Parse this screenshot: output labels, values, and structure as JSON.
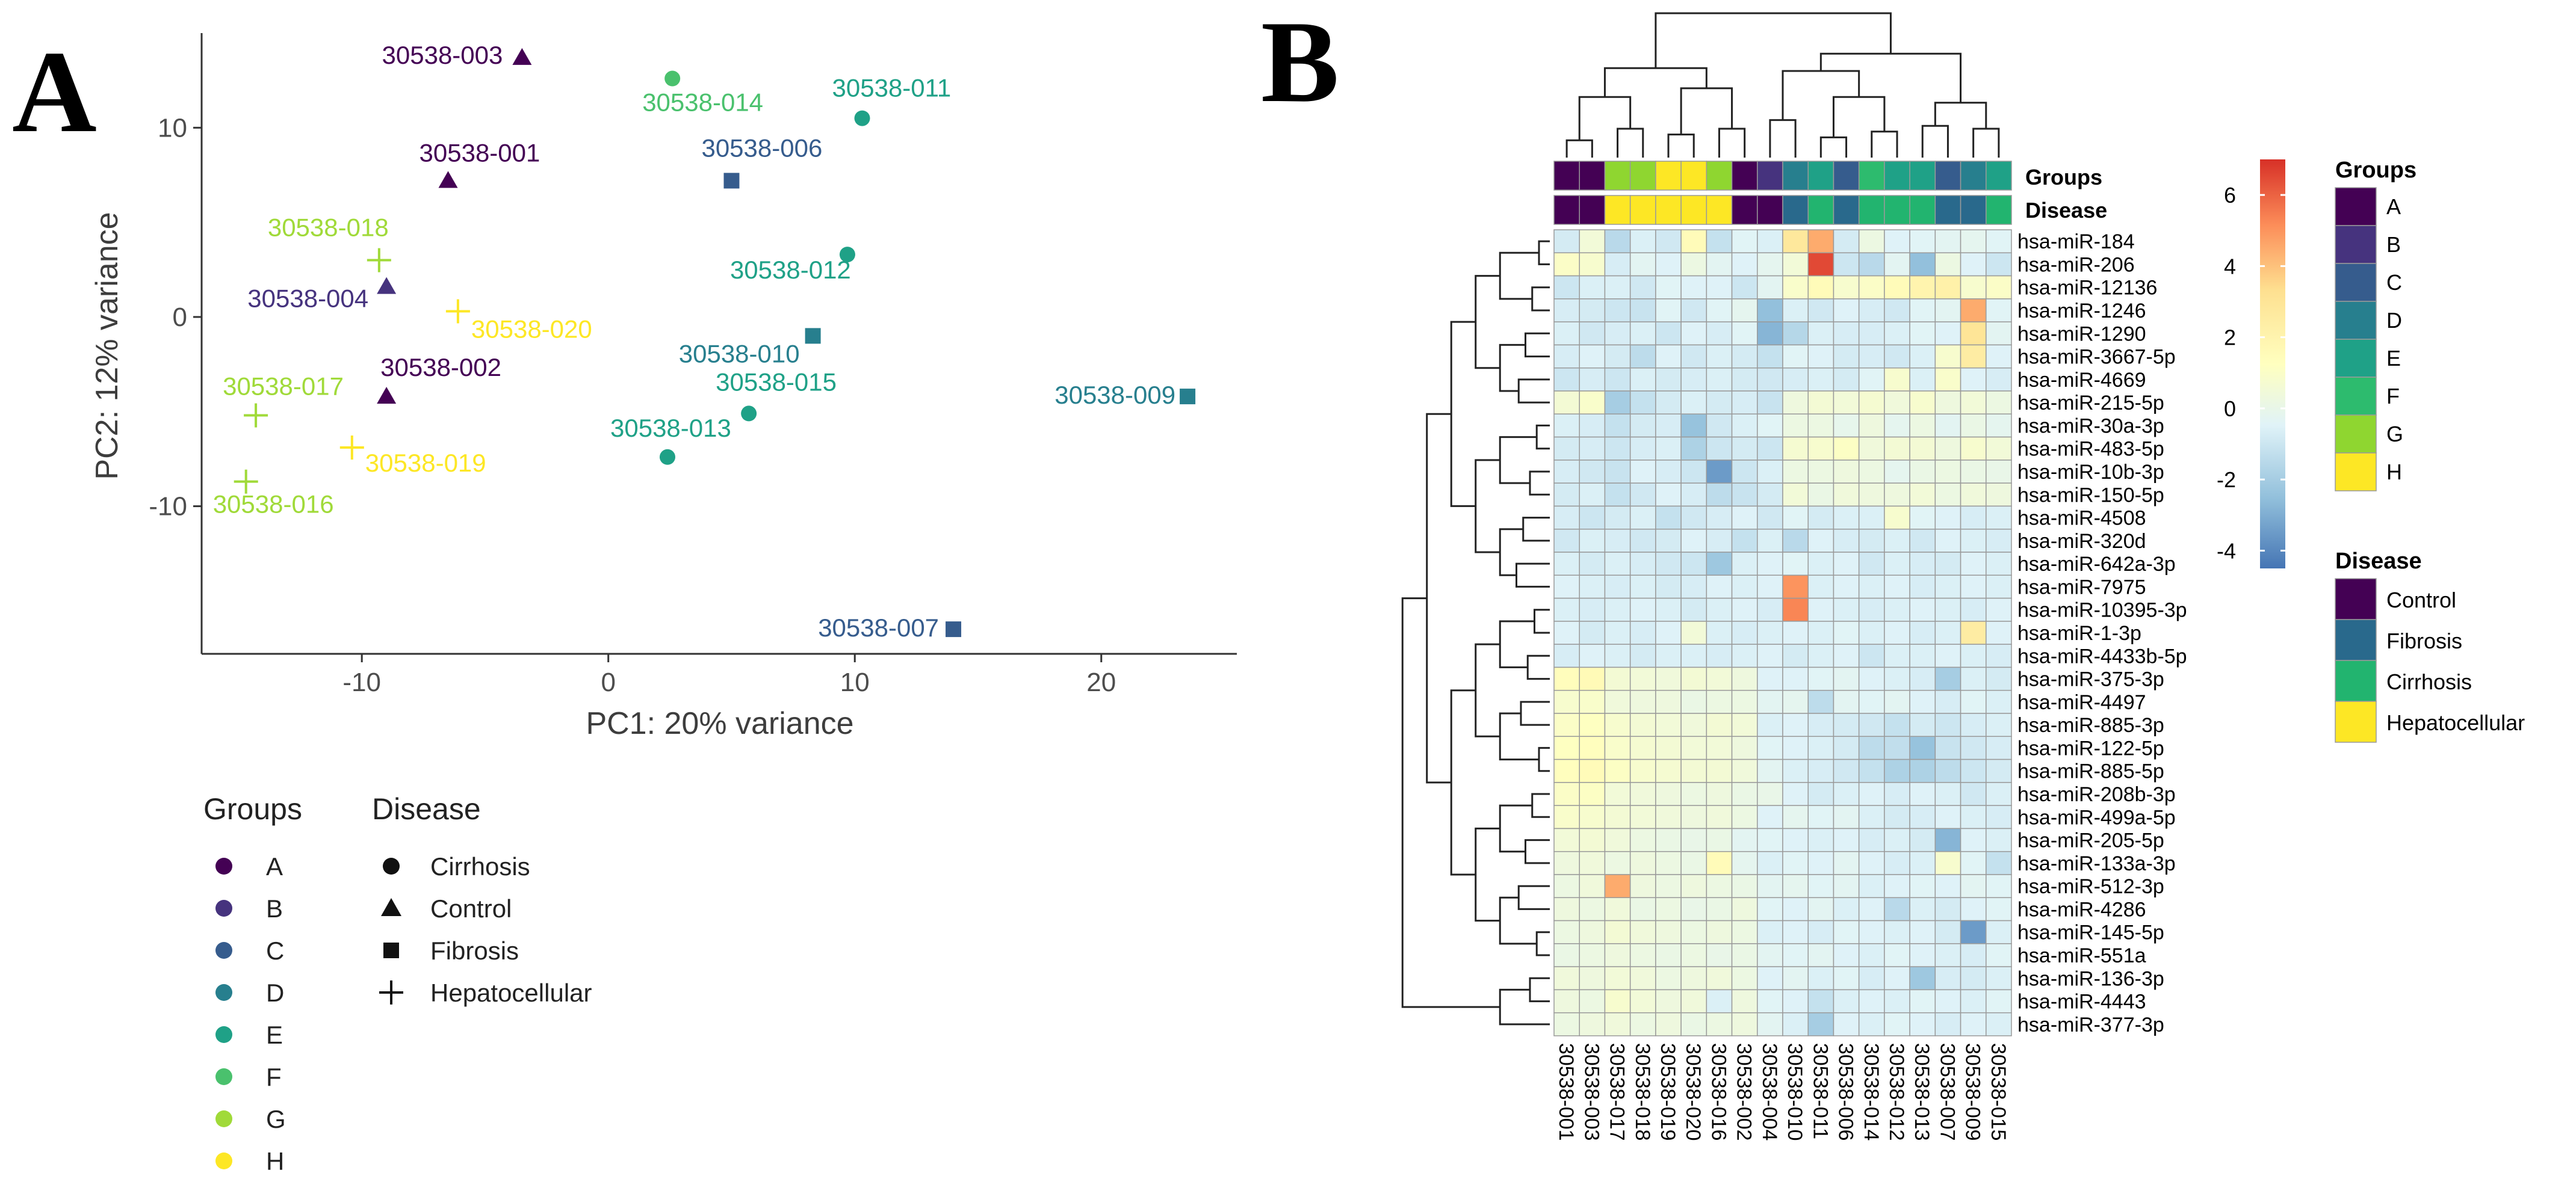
{
  "panel_a": {
    "letter": "A",
    "legend": {
      "groups_title": "Groups",
      "groups": [
        {
          "label": "A",
          "color": "#440154"
        },
        {
          "label": "B",
          "color": "#46337e"
        },
        {
          "label": "C",
          "color": "#365c8d"
        },
        {
          "label": "D",
          "color": "#277f8e"
        },
        {
          "label": "E",
          "color": "#1fa187"
        },
        {
          "label": "F",
          "color": "#4ac16d"
        },
        {
          "label": "G",
          "color": "#a0da39"
        },
        {
          "label": "H",
          "color": "#fde725"
        }
      ],
      "disease_title": "Disease",
      "disease": [
        {
          "label": "Cirrhosis",
          "shape": "circle-icon"
        },
        {
          "label": "Control",
          "shape": "triangle-icon"
        },
        {
          "label": "Fibrosis",
          "shape": "square-icon"
        },
        {
          "label": "Hepatocellular",
          "shape": "plus-icon"
        }
      ]
    }
  },
  "panel_b": {
    "letter": "B",
    "groups_bar_label": "Groups",
    "disease_bar_label": "Disease",
    "colorbar": {
      "ticks": [
        6,
        4,
        2,
        0,
        -2,
        -4
      ],
      "min": -4.5,
      "max": 7.0,
      "colors": [
        "#4575b4",
        "#91bfdb",
        "#e0f3f8",
        "#ffffbf",
        "#fee090",
        "#fc8d59",
        "#d73027"
      ]
    },
    "legend": {
      "groups_title": "Groups",
      "groups": [
        {
          "label": "A",
          "color": "#440154"
        },
        {
          "label": "B",
          "color": "#46337e"
        },
        {
          "label": "C",
          "color": "#365c8d"
        },
        {
          "label": "D",
          "color": "#277f8e"
        },
        {
          "label": "E",
          "color": "#1fa187"
        },
        {
          "label": "F",
          "color": "#2dbb6e"
        },
        {
          "label": "G",
          "color": "#8fd630"
        },
        {
          "label": "H",
          "color": "#fde725"
        }
      ],
      "disease_title": "Disease",
      "disease": [
        {
          "label": "Control",
          "color": "#440154"
        },
        {
          "label": "Fibrosis",
          "color": "#29698c"
        },
        {
          "label": "Cirrhosis",
          "color": "#22b46f"
        },
        {
          "label": "Hepatocellular",
          "color": "#fde725"
        }
      ]
    }
  },
  "chart_data": [
    {
      "type": "scatter",
      "title": "",
      "xlabel": "PC1: 20% variance",
      "ylabel": "PC2: 12% variance",
      "xlim": [
        -16.5,
        25.5
      ],
      "ylim": [
        -17.8,
        15.0
      ],
      "xticks": [
        -10,
        0,
        10,
        20
      ],
      "yticks": [
        -10,
        0,
        10
      ],
      "grid": false,
      "points": [
        {
          "label": "30538-003",
          "x": -3.5,
          "y": 13.7,
          "group": "A",
          "disease": "Control"
        },
        {
          "label": "30538-001",
          "x": -6.5,
          "y": 7.2,
          "group": "A",
          "disease": "Control"
        },
        {
          "label": "30538-002",
          "x": -9.0,
          "y": -4.2,
          "group": "A",
          "disease": "Control"
        },
        {
          "label": "30538-004",
          "x": -9.0,
          "y": 1.6,
          "group": "B",
          "disease": "Control"
        },
        {
          "label": "30538-006",
          "x": 5.0,
          "y": 7.2,
          "group": "C",
          "disease": "Fibrosis"
        },
        {
          "label": "30538-007",
          "x": 14.0,
          "y": -16.5,
          "group": "C",
          "disease": "Fibrosis"
        },
        {
          "label": "30538-010",
          "x": 8.3,
          "y": -1.0,
          "group": "D",
          "disease": "Fibrosis"
        },
        {
          "label": "30538-009",
          "x": 23.5,
          "y": -4.2,
          "group": "D",
          "disease": "Fibrosis"
        },
        {
          "label": "30538-011",
          "x": 10.3,
          "y": 10.5,
          "group": "E",
          "disease": "Cirrhosis"
        },
        {
          "label": "30538-012",
          "x": 9.7,
          "y": 3.3,
          "group": "E",
          "disease": "Cirrhosis"
        },
        {
          "label": "30538-013",
          "x": 2.4,
          "y": -7.4,
          "group": "E",
          "disease": "Cirrhosis"
        },
        {
          "label": "30538-015",
          "x": 5.7,
          "y": -5.1,
          "group": "E",
          "disease": "Cirrhosis"
        },
        {
          "label": "30538-014",
          "x": 2.6,
          "y": 12.6,
          "group": "F",
          "disease": "Cirrhosis"
        },
        {
          "label": "30538-018",
          "x": -9.3,
          "y": 3.0,
          "group": "G",
          "disease": "Hepatocellular"
        },
        {
          "label": "30538-017",
          "x": -14.3,
          "y": -5.2,
          "group": "G",
          "disease": "Hepatocellular"
        },
        {
          "label": "30538-016",
          "x": -14.7,
          "y": -8.7,
          "group": "G",
          "disease": "Hepatocellular"
        },
        {
          "label": "30538-020",
          "x": -6.1,
          "y": 0.3,
          "group": "H",
          "disease": "Hepatocellular"
        },
        {
          "label": "30538-019",
          "x": -10.4,
          "y": -6.9,
          "group": "H",
          "disease": "Hepatocellular"
        }
      ]
    },
    {
      "type": "heatmap",
      "title": "",
      "columns": [
        "30538-001",
        "30538-003",
        "30538-017",
        "30538-018",
        "30538-019",
        "30538-020",
        "30538-016",
        "30538-002",
        "30538-004",
        "30538-010",
        "30538-011",
        "30538-006",
        "30538-014",
        "30538-012",
        "30538-013",
        "30538-007",
        "30538-009",
        "30538-015"
      ],
      "column_groups": [
        "A",
        "A",
        "G",
        "G",
        "H",
        "H",
        "G",
        "A",
        "B",
        "D",
        "E",
        "C",
        "F",
        "E",
        "E",
        "C",
        "D",
        "E"
      ],
      "column_disease": [
        "Control",
        "Control",
        "Hepatocellular",
        "Hepatocellular",
        "Hepatocellular",
        "Hepatocellular",
        "Hepatocellular",
        "Control",
        "Control",
        "Fibrosis",
        "Cirrhosis",
        "Fibrosis",
        "Cirrhosis",
        "Cirrhosis",
        "Cirrhosis",
        "Fibrosis",
        "Fibrosis",
        "Cirrhosis"
      ],
      "rows": [
        "hsa-miR-184",
        "hsa-miR-206",
        "hsa-miR-12136",
        "hsa-miR-1246",
        "hsa-miR-1290",
        "hsa-miR-3667-5p",
        "hsa-miR-4669",
        "hsa-miR-215-5p",
        "hsa-miR-30a-3p",
        "hsa-miR-483-5p",
        "hsa-miR-10b-3p",
        "hsa-miR-150-5p",
        "hsa-miR-4508",
        "hsa-miR-320d",
        "hsa-miR-642a-3p",
        "hsa-miR-7975",
        "hsa-miR-10395-3p",
        "hsa-miR-1-3p",
        "hsa-miR-4433b-5p",
        "hsa-miR-375-3p",
        "hsa-miR-4497",
        "hsa-miR-885-3p",
        "hsa-miR-122-5p",
        "hsa-miR-885-5p",
        "hsa-miR-208b-3p",
        "hsa-miR-499a-5p",
        "hsa-miR-205-5p",
        "hsa-miR-133a-3p",
        "hsa-miR-512-3p",
        "hsa-miR-4286",
        "hsa-miR-145-5p",
        "hsa-miR-551a",
        "hsa-miR-136-3p",
        "hsa-miR-4443",
        "hsa-miR-377-3p"
      ],
      "values": [
        [
          -0.8,
          0.5,
          -1.5,
          -0.6,
          -0.9,
          1.5,
          -1.2,
          -0.4,
          -0.6,
          2.8,
          4.5,
          -0.8,
          0.2,
          -0.5,
          -0.4,
          -0.3,
          -0.2,
          -0.4
        ],
        [
          1.0,
          0.8,
          -0.7,
          -0.3,
          -0.5,
          0.2,
          -0.3,
          -0.5,
          -0.2,
          0.5,
          6.5,
          -1.0,
          -1.5,
          -0.3,
          -2.5,
          0.2,
          -0.5,
          -1.0
        ],
        [
          -1.0,
          -0.6,
          -0.6,
          -0.9,
          -0.4,
          -0.5,
          -0.5,
          -1.0,
          -0.3,
          0.9,
          1.5,
          0.8,
          1.0,
          1.5,
          2.0,
          2.2,
          0.8,
          1.0
        ],
        [
          -0.7,
          -0.8,
          -1.0,
          -1.1,
          -0.4,
          -0.9,
          -0.4,
          -0.2,
          -2.5,
          -0.6,
          -0.9,
          -0.5,
          -0.7,
          -0.9,
          -0.4,
          -0.3,
          4.5,
          -0.4
        ],
        [
          -0.6,
          -0.9,
          -0.7,
          -0.6,
          -1.0,
          -0.5,
          -0.7,
          -0.4,
          -2.8,
          -1.6,
          -0.6,
          -0.7,
          -0.7,
          -0.6,
          -0.4,
          -0.5,
          3.0,
          -0.3
        ],
        [
          -0.7,
          -0.5,
          -0.8,
          -1.4,
          -0.5,
          -0.9,
          -0.6,
          -0.8,
          -1.2,
          -0.4,
          -0.5,
          -0.8,
          -0.7,
          -0.9,
          -0.6,
          0.8,
          2.5,
          -0.5
        ],
        [
          -1.0,
          -0.7,
          -1.0,
          -0.6,
          -0.8,
          -0.7,
          -0.6,
          -0.8,
          -0.9,
          -0.7,
          -0.6,
          -0.8,
          -0.4,
          0.8,
          -0.6,
          0.9,
          -0.5,
          -0.7
        ],
        [
          0.6,
          0.9,
          -2.0,
          -1.2,
          -0.8,
          -0.6,
          -0.8,
          -0.7,
          -1.1,
          0.3,
          0.6,
          0.5,
          0.7,
          0.4,
          0.8,
          0.3,
          0.5,
          0.2
        ],
        [
          -0.6,
          -0.7,
          -1.2,
          -0.8,
          -0.7,
          -2.4,
          -0.9,
          -0.6,
          -0.4,
          0.2,
          0.2,
          -0.1,
          0.3,
          -0.2,
          0.2,
          -0.3,
          0.1,
          -0.2
        ],
        [
          -0.8,
          -0.7,
          -1.0,
          -0.7,
          -0.6,
          -1.8,
          -1.0,
          -0.8,
          -1.0,
          0.7,
          0.8,
          1.1,
          0.4,
          0.6,
          0.6,
          0.3,
          0.8,
          0.5
        ],
        [
          -0.7,
          -0.9,
          -1.1,
          -0.5,
          -0.7,
          -1.0,
          -3.5,
          -1.0,
          -0.6,
          0.2,
          0.2,
          0.3,
          0.2,
          -0.2,
          0.1,
          0.2,
          0.1,
          0.0
        ],
        [
          -0.8,
          -0.6,
          -1.2,
          -0.9,
          -0.5,
          -0.7,
          -1.4,
          -1.1,
          -0.8,
          0.5,
          0.1,
          0.4,
          0.3,
          0.3,
          0.5,
          0.2,
          0.4,
          0.3
        ],
        [
          -0.7,
          -1.0,
          -0.8,
          -0.6,
          -1.2,
          -0.9,
          -0.7,
          -0.5,
          -0.9,
          -0.4,
          -0.8,
          -0.6,
          -0.6,
          0.8,
          -0.4,
          -0.5,
          -0.7,
          -0.6
        ],
        [
          -0.9,
          -0.6,
          -0.7,
          -0.9,
          -0.8,
          -0.5,
          -0.7,
          -1.2,
          -0.6,
          -1.5,
          -0.5,
          -0.7,
          -0.8,
          -0.6,
          -0.9,
          -0.5,
          -0.6,
          -0.7
        ],
        [
          -0.6,
          -0.8,
          -0.6,
          -0.7,
          -0.9,
          -1.0,
          -2.2,
          -0.6,
          -0.5,
          -0.4,
          -0.6,
          -0.5,
          -0.9,
          -0.6,
          -0.7,
          -0.8,
          -0.5,
          -0.6
        ],
        [
          -0.5,
          -0.6,
          -0.7,
          -0.6,
          -0.8,
          -0.7,
          -0.5,
          -0.6,
          -0.5,
          5.0,
          -0.6,
          -0.5,
          -0.6,
          -0.5,
          -0.7,
          -0.6,
          -0.5,
          -0.6
        ],
        [
          -0.6,
          -0.7,
          -0.6,
          -0.5,
          -0.6,
          -0.8,
          -0.6,
          -0.5,
          -0.7,
          5.3,
          -0.5,
          -0.6,
          -0.7,
          -0.6,
          -0.5,
          -0.6,
          -0.7,
          -0.5
        ],
        [
          -0.5,
          -0.8,
          -0.6,
          -0.7,
          -0.5,
          0.5,
          -0.6,
          -0.7,
          -0.6,
          -0.5,
          -0.6,
          -0.4,
          -0.6,
          -0.5,
          -0.7,
          -0.6,
          2.5,
          -0.5
        ],
        [
          -0.7,
          -0.5,
          -0.6,
          -0.8,
          -0.6,
          -0.6,
          -0.7,
          -0.6,
          -0.5,
          -0.8,
          -0.6,
          -0.5,
          -1.0,
          -0.6,
          -0.6,
          -0.5,
          -0.6,
          -0.7
        ],
        [
          1.4,
          1.6,
          0.6,
          0.5,
          0.4,
          0.6,
          0.5,
          0.3,
          -0.5,
          -0.5,
          -0.4,
          -0.3,
          -0.5,
          -0.6,
          -0.7,
          -2.0,
          -0.6,
          -0.8
        ],
        [
          0.8,
          0.9,
          0.4,
          0.3,
          0.3,
          0.1,
          0.2,
          0.2,
          -0.3,
          -0.2,
          -1.4,
          -0.3,
          -0.4,
          -0.3,
          -0.5,
          -0.7,
          -0.4,
          -0.6
        ],
        [
          1.0,
          1.2,
          0.8,
          0.6,
          0.5,
          0.4,
          0.6,
          0.5,
          -0.6,
          -0.5,
          -0.7,
          -0.8,
          -0.9,
          -1.2,
          -0.8,
          -1.0,
          -0.7,
          -0.6
        ],
        [
          1.2,
          1.3,
          0.9,
          0.7,
          0.6,
          0.5,
          0.5,
          0.3,
          -0.4,
          -0.5,
          -0.6,
          -0.8,
          -1.4,
          -1.3,
          -2.4,
          -1.1,
          -0.9,
          -0.7
        ],
        [
          1.3,
          1.5,
          1.1,
          0.8,
          0.7,
          0.6,
          0.6,
          0.4,
          -0.3,
          -0.6,
          -0.7,
          -0.9,
          -1.2,
          -1.8,
          -1.8,
          -1.4,
          -1.0,
          -0.8
        ],
        [
          1.0,
          1.1,
          0.5,
          0.4,
          0.3,
          0.2,
          0.3,
          0.1,
          0.0,
          -0.5,
          -0.8,
          -0.6,
          -0.5,
          -0.7,
          -0.5,
          -0.6,
          -0.9,
          -0.6
        ],
        [
          0.9,
          0.8,
          0.6,
          0.5,
          0.4,
          0.3,
          0.4,
          0.2,
          -0.5,
          -0.2,
          -0.4,
          -0.3,
          -0.6,
          -0.8,
          -0.7,
          -0.5,
          -0.6,
          -0.7
        ],
        [
          0.5,
          0.6,
          0.4,
          0.2,
          0.1,
          0.0,
          0.1,
          -0.3,
          -0.4,
          -0.5,
          -0.6,
          -0.5,
          -0.7,
          -0.6,
          -0.8,
          -2.8,
          -0.5,
          -0.6
        ],
        [
          0.3,
          0.4,
          0.2,
          0.3,
          0.2,
          0.1,
          1.5,
          -0.2,
          -0.6,
          -0.4,
          -0.5,
          -0.3,
          -0.5,
          -0.7,
          -0.6,
          0.8,
          -0.4,
          -1.2
        ],
        [
          0.2,
          0.4,
          4.5,
          0.3,
          0.2,
          0.3,
          0.2,
          0.1,
          -0.3,
          -0.2,
          -0.4,
          -0.3,
          -0.6,
          -0.5,
          -0.4,
          -0.5,
          -0.3,
          -0.4
        ],
        [
          0.3,
          0.2,
          0.4,
          0.1,
          0.2,
          0.0,
          0.1,
          0.3,
          -0.4,
          -0.5,
          -0.3,
          -0.6,
          -0.5,
          -1.5,
          -0.6,
          -0.8,
          -0.5,
          -0.4
        ],
        [
          0.2,
          0.3,
          0.6,
          0.4,
          0.3,
          0.2,
          0.3,
          0.2,
          -0.6,
          -0.5,
          -0.7,
          -0.4,
          -0.5,
          -0.6,
          -0.5,
          -0.8,
          -3.5,
          -0.6
        ],
        [
          0.1,
          0.2,
          0.3,
          0.2,
          0.1,
          0.2,
          0.0,
          0.1,
          -0.3,
          -0.4,
          -0.3,
          -0.5,
          -0.6,
          -0.4,
          -0.5,
          -0.6,
          -0.7,
          -0.4
        ],
        [
          0.4,
          0.3,
          0.5,
          0.4,
          0.2,
          0.3,
          0.4,
          0.2,
          -0.5,
          -0.3,
          -0.6,
          -0.4,
          -0.7,
          -0.5,
          -2.2,
          -0.7,
          -0.8,
          -0.6
        ],
        [
          0.3,
          0.2,
          0.8,
          0.5,
          0.3,
          0.4,
          -0.6,
          0.3,
          -0.4,
          -0.5,
          -1.2,
          -0.6,
          -0.5,
          -0.6,
          -0.4,
          -0.5,
          -0.6,
          -0.4
        ],
        [
          0.2,
          0.3,
          0.4,
          0.2,
          0.3,
          0.1,
          0.2,
          0.3,
          -0.3,
          -0.6,
          -2.0,
          -0.5,
          -0.6,
          -0.4,
          -0.5,
          -0.7,
          -0.5,
          -0.6
        ]
      ],
      "colorbar_range": [
        -4.5,
        7.0
      ]
    }
  ]
}
